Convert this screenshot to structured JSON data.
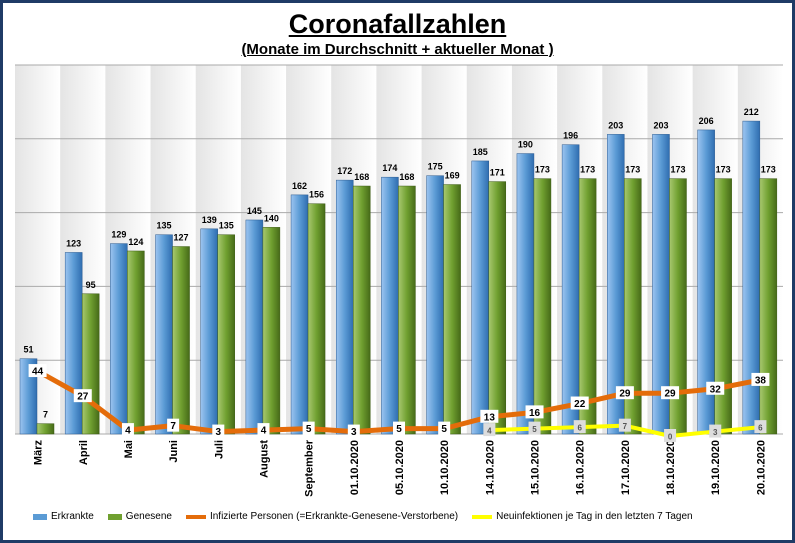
{
  "chart_data": {
    "type": "bar",
    "title": "Coronafallzahlen",
    "subtitle": "(Monate im Durchschnitt + aktueller Monat )",
    "categories": [
      "März",
      "April",
      "Mai",
      "Juni",
      "Juli",
      "August",
      "September",
      "01.10.2020",
      "05.10.2020",
      "10.10.2020",
      "14.10.2020",
      "15.10.2020",
      "16.10.2020",
      "17.10.2020",
      "18.10.2020",
      "19.10.2020",
      "20.10.2020"
    ],
    "ylim": [
      0,
      250
    ],
    "grid": true,
    "legend_position": "bottom",
    "series": [
      {
        "name": "Erkrankte",
        "type": "bar",
        "color": "#5b9bd5",
        "values": [
          51,
          123,
          129,
          135,
          139,
          145,
          162,
          172,
          174,
          175,
          185,
          190,
          196,
          203,
          203,
          206,
          212
        ]
      },
      {
        "name": "Genesene",
        "type": "bar",
        "color": "#70a030",
        "values": [
          7,
          95,
          124,
          127,
          135,
          140,
          156,
          168,
          168,
          169,
          171,
          173,
          173,
          173,
          173,
          173,
          173
        ]
      },
      {
        "name": "Infizierte Personen (=Erkrankte-Genesene-Verstorbene)",
        "type": "line",
        "color": "#e46c0a",
        "values": [
          44,
          27,
          4,
          7,
          3,
          4,
          5,
          3,
          5,
          5,
          13,
          16,
          22,
          29,
          29,
          32,
          38
        ]
      },
      {
        "name": "Neuinfektionen je Tag in den letzten 7 Tagen",
        "type": "line",
        "color": "#ffff00",
        "values": [
          null,
          null,
          null,
          null,
          null,
          null,
          null,
          null,
          null,
          null,
          4,
          5,
          6,
          7,
          0,
          3,
          6
        ]
      }
    ]
  }
}
